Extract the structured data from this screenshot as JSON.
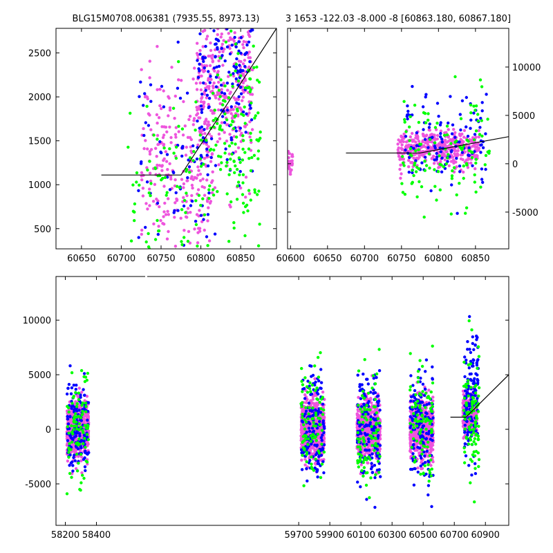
{
  "titles": {
    "left": "BLG15M0708.006381 (7935.55, 8973.13)",
    "right": "3 1653 -122.03 -8.000 -8 [60863.180, 60867.180]"
  },
  "colors": {
    "g": "#00ff00",
    "b": "#0000ff",
    "m": "#ee55dd",
    "model": "#000000"
  },
  "chart_data": [
    {
      "id": "top-left",
      "type": "scatter",
      "title": "BLG15M0708.006381 (7935.55, 8973.13)",
      "xlim": [
        60618,
        60895
      ],
      "ylim": [
        270,
        2780
      ],
      "xticks": [
        60650,
        60700,
        60750,
        60800,
        60850
      ],
      "yticks": [
        500,
        1000,
        1500,
        2000,
        2500
      ],
      "y_axis_side": "left",
      "grid": false,
      "series": [
        {
          "color_key": "m",
          "clusters": [
            [
              60770,
              1250,
              45,
              500,
              260
            ],
            [
              60830,
              2050,
              35,
              450,
              320
            ]
          ]
        },
        {
          "color_key": "b",
          "clusters": [
            [
              60770,
              1250,
              50,
              550,
              70
            ],
            [
              60830,
              2200,
              35,
              500,
              150
            ]
          ]
        },
        {
          "color_key": "g",
          "clusters": [
            [
              60760,
              1000,
              55,
              550,
              90
            ],
            [
              60845,
              1500,
              30,
              600,
              140
            ]
          ]
        }
      ],
      "model": [
        [
          60675,
          1110
        ],
        [
          60775,
          1110
        ],
        [
          60895,
          2780
        ]
      ]
    },
    {
      "id": "top-right",
      "type": "scatter",
      "title": "3 1653 -122.03 -8.000 -8 [60863.180, 60867.180]",
      "xlim": [
        60596,
        60895
      ],
      "ylim": [
        -8800,
        14000
      ],
      "xticks": [
        60600,
        60650,
        60700,
        60750,
        60800,
        60850
      ],
      "yticks": [
        -5000,
        0,
        5000,
        10000
      ],
      "y_axis_side": "right",
      "grid": false,
      "series": [
        {
          "color_key": "m",
          "clusters": [
            [
              60800,
              1500,
              55,
              900,
              420
            ],
            [
              60600,
              200,
              3,
              600,
              25
            ]
          ]
        },
        {
          "color_key": "b",
          "clusters": [
            [
              60810,
              2200,
              55,
              2500,
              120
            ]
          ]
        },
        {
          "color_key": "g",
          "clusters": [
            [
              60810,
              1400,
              60,
              2800,
              120
            ]
          ]
        }
      ],
      "model": [
        [
          60675,
          1110
        ],
        [
          60775,
          1110
        ],
        [
          60895,
          2800
        ]
      ]
    },
    {
      "id": "bottom",
      "type": "scatter",
      "xlim": [
        58140,
        61050
      ],
      "ylim": [
        -8800,
        14000
      ],
      "xticks": [
        58200,
        58400,
        59700,
        59900,
        60100,
        60300,
        60500,
        60700,
        60900
      ],
      "yticks": [
        -5000,
        0,
        5000,
        10000
      ],
      "y_axis_side": "left",
      "grid": false,
      "series": [
        {
          "color_key": "m",
          "clusters": [
            [
              58280,
              0,
              70,
              1200,
              700
            ],
            [
              59790,
              0,
              75,
              1300,
              700
            ],
            [
              60150,
              0,
              75,
              1300,
              700
            ],
            [
              60490,
              0,
              75,
              1300,
              700
            ],
            [
              60800,
              1500,
              45,
              900,
              300
            ]
          ]
        },
        {
          "color_key": "b",
          "clusters": [
            [
              58280,
              200,
              70,
              2000,
              150
            ],
            [
              59790,
              200,
              75,
              2500,
              150
            ],
            [
              60150,
              200,
              75,
              2500,
              150
            ],
            [
              60490,
              200,
              75,
              2500,
              150
            ],
            [
              60810,
              2500,
              45,
              2800,
              150
            ]
          ]
        },
        {
          "color_key": "g",
          "clusters": [
            [
              58280,
              300,
              70,
              2400,
              90
            ],
            [
              59790,
              300,
              75,
              2800,
              90
            ],
            [
              60150,
              300,
              75,
              2800,
              90
            ],
            [
              60490,
              300,
              75,
              2800,
              90
            ],
            [
              60810,
              2000,
              50,
              3200,
              100
            ]
          ]
        }
      ],
      "model": [
        [
          60675,
          1110
        ],
        [
          60775,
          1110
        ],
        [
          61050,
          5000
        ]
      ]
    }
  ]
}
